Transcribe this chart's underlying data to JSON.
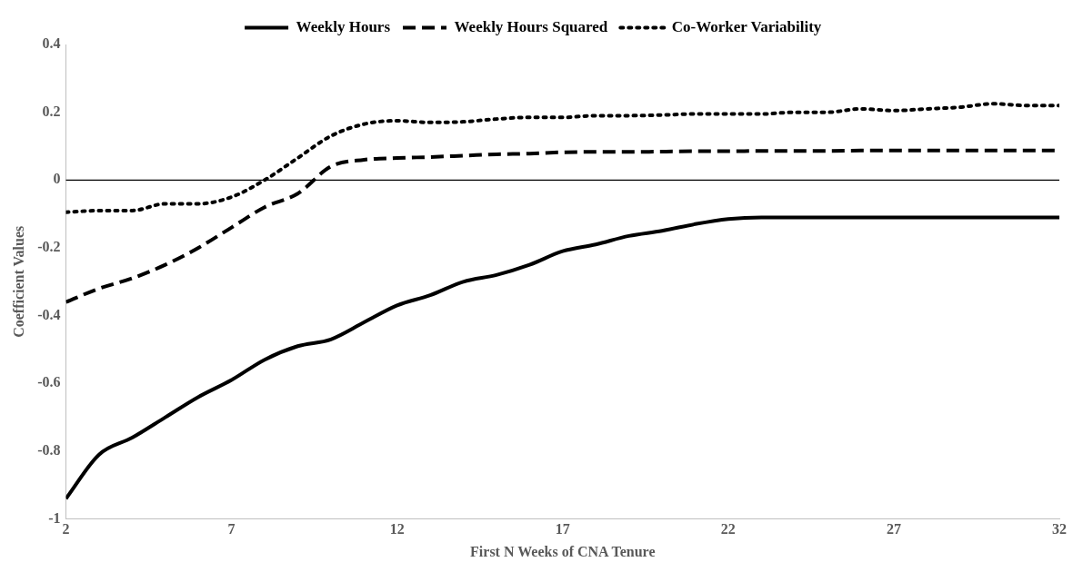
{
  "chart_data": {
    "type": "line",
    "xlabel": "First N Weeks of CNA Tenure",
    "ylabel": "Coefficient Values",
    "x": [
      2,
      3,
      4,
      5,
      6,
      7,
      8,
      9,
      10,
      11,
      12,
      13,
      14,
      15,
      16,
      17,
      18,
      19,
      20,
      21,
      22,
      23,
      24,
      25,
      26,
      27,
      28,
      29,
      30,
      31,
      32
    ],
    "series": [
      {
        "name": "Weekly Hours",
        "color": "#000000",
        "line_style": "solid",
        "values": [
          -0.94,
          -0.81,
          -0.76,
          -0.7,
          -0.64,
          -0.59,
          -0.53,
          -0.49,
          -0.47,
          -0.42,
          -0.37,
          -0.34,
          -0.3,
          -0.28,
          -0.25,
          -0.21,
          -0.19,
          -0.165,
          -0.15,
          -0.13,
          -0.115,
          -0.11,
          -0.11,
          -0.11,
          -0.11,
          -0.11,
          -0.11,
          -0.11,
          -0.11,
          -0.11,
          -0.11
        ]
      },
      {
        "name": "Weekly Hours Squared",
        "color": "#000000",
        "line_style": "dashed",
        "values": [
          -0.36,
          -0.32,
          -0.29,
          -0.25,
          -0.2,
          -0.14,
          -0.08,
          -0.04,
          0.04,
          0.06,
          0.065,
          0.068,
          0.072,
          0.076,
          0.078,
          0.082,
          0.083,
          0.083,
          0.084,
          0.085,
          0.085,
          0.086,
          0.086,
          0.086,
          0.087,
          0.087,
          0.087,
          0.087,
          0.087,
          0.087,
          0.087
        ]
      },
      {
        "name": "Co-Worker Variability",
        "color": "#000000",
        "line_style": "dotted",
        "values": [
          -0.095,
          -0.09,
          -0.09,
          -0.07,
          -0.07,
          -0.05,
          0.0,
          0.065,
          0.13,
          0.165,
          0.175,
          0.17,
          0.172,
          0.18,
          0.185,
          0.185,
          0.19,
          0.19,
          0.192,
          0.195,
          0.195,
          0.195,
          0.2,
          0.2,
          0.21,
          0.205,
          0.21,
          0.215,
          0.225,
          0.22,
          0.22
        ]
      }
    ],
    "xlim": [
      2,
      32
    ],
    "xticks": [
      2,
      7,
      12,
      17,
      22,
      27,
      32
    ],
    "ylim": [
      -1,
      0.4
    ],
    "yticks": [
      -1,
      -0.8,
      -0.6,
      -0.4,
      -0.2,
      0,
      0.2,
      0.4
    ],
    "ref_lines": [
      {
        "axis": "y",
        "value": 0,
        "label": null,
        "color": "#000000"
      }
    ],
    "grid": false,
    "legend": "top",
    "marker": "none"
  }
}
